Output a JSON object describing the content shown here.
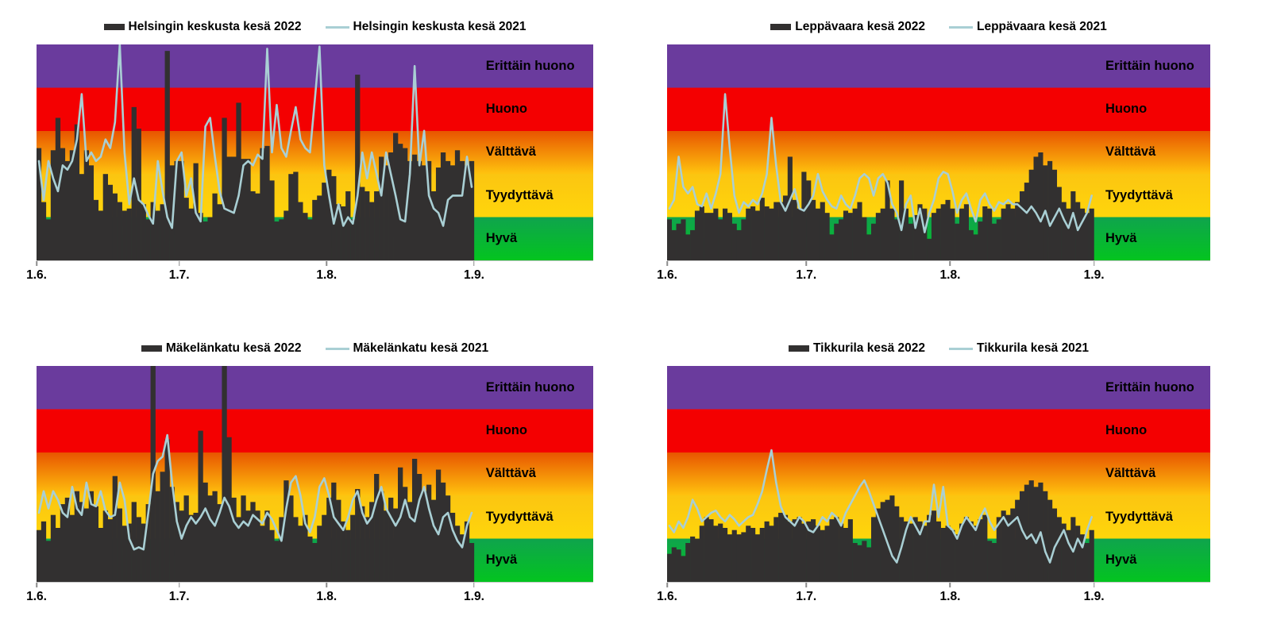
{
  "page": {
    "background": "#ffffff"
  },
  "colors": {
    "bar": "#323030",
    "line": "#A9CFD4",
    "axis_line": "#c9c9c9",
    "tick": "#8c8c8c",
    "text": "#000000"
  },
  "quality_bands": [
    {
      "label": "Erittäin huono",
      "range": [
        4,
        5
      ],
      "color_top": "#6A3B9D",
      "color_bottom": "#6A3B9D"
    },
    {
      "label": "Huono",
      "range": [
        3,
        4
      ],
      "color_top": "#F40001",
      "color_bottom": "#F40001"
    },
    {
      "label": "Välttävä",
      "range": [
        2,
        3
      ],
      "color_top": "#E85500",
      "color_bottom": "#FFC30E"
    },
    {
      "label": "Tyydyttävä",
      "range": [
        1,
        2
      ],
      "color_top": "#FBC511",
      "color_bottom": "#FFD60B"
    },
    {
      "label": "Hyvä",
      "range": [
        0,
        1
      ],
      "color_top": "#0FA44D",
      "color_bottom": "#03C41F"
    }
  ],
  "x_axis": {
    "tick_labels": [
      "1.6.",
      "1.7.",
      "1.8.",
      "1.9."
    ],
    "tick_days": [
      0,
      30,
      61,
      92
    ],
    "n_days": 92
  },
  "chart_data": [
    {
      "type": "bar+line",
      "title": "",
      "ylim": [
        0,
        5
      ],
      "x_tick_labels": [
        "1.6.",
        "1.7.",
        "1.8.",
        "1.9."
      ],
      "series": [
        {
          "name": "Helsingin keskusta kesä 2022",
          "type": "bar",
          "color": "#323030",
          "values": [
            2.6,
            1.35,
            0.95,
            2.55,
            3.3,
            2.6,
            2.3,
            2.55,
            3.15,
            2.0,
            2.55,
            2.2,
            1.4,
            1.15,
            2.0,
            1.75,
            1.55,
            1.35,
            1.15,
            1.2,
            3.55,
            3.05,
            1.3,
            0.95,
            1.35,
            1.15,
            1.3,
            4.85,
            2.2,
            2.3,
            2.3,
            1.45,
            1.2,
            2.25,
            1.1,
            0.9,
            1.0,
            1.55,
            1.3,
            3.3,
            2.4,
            2.4,
            3.65,
            2.35,
            2.35,
            1.6,
            1.55,
            2.6,
            2.65,
            1.85,
            0.9,
            0.95,
            1.15,
            2.0,
            2.05,
            1.35,
            1.1,
            0.95,
            1.4,
            1.5,
            1.8,
            2.1,
            1.95,
            1.3,
            1.25,
            1.6,
            0.95,
            4.3,
            1.7,
            1.6,
            1.35,
            1.6,
            2.4,
            2.2,
            2.5,
            2.95,
            2.7,
            2.6,
            2.3,
            2.45,
            2.3,
            2.2,
            2.3,
            1.6,
            2.15,
            2.5,
            2.3,
            2.2,
            2.55,
            2.3,
            2.2,
            2.3
          ]
        },
        {
          "name": "Helsingin keskusta kesä 2021",
          "type": "line",
          "color": "#A9CFD4",
          "values": [
            2.3,
            1.4,
            2.3,
            1.9,
            1.6,
            2.2,
            2.1,
            2.3,
            2.8,
            3.85,
            2.3,
            2.5,
            2.3,
            2.4,
            2.8,
            2.6,
            3.2,
            5.0,
            2.5,
            1.3,
            1.9,
            1.4,
            1.3,
            1.05,
            0.85,
            2.3,
            1.6,
            1.0,
            0.75,
            2.3,
            2.5,
            1.5,
            1.9,
            1.1,
            0.9,
            3.1,
            3.3,
            2.4,
            1.6,
            1.2,
            1.15,
            1.1,
            1.5,
            2.2,
            2.3,
            2.2,
            2.45,
            2.35,
            4.9,
            2.5,
            3.6,
            2.6,
            2.4,
            3.0,
            3.55,
            2.8,
            2.6,
            2.5,
            3.7,
            4.95,
            2.2,
            1.5,
            0.85,
            1.3,
            0.8,
            1.0,
            0.85,
            1.5,
            2.5,
            1.9,
            2.5,
            2.0,
            1.5,
            2.5,
            2.0,
            1.5,
            0.95,
            0.9,
            2.0,
            4.5,
            2.2,
            3.0,
            1.5,
            1.2,
            1.1,
            0.8,
            1.4,
            1.5,
            1.5,
            1.5,
            2.4,
            1.7
          ]
        }
      ]
    },
    {
      "type": "bar+line",
      "title": "",
      "ylim": [
        0,
        5
      ],
      "x_tick_labels": [
        "1.6.",
        "1.7.",
        "1.8.",
        "1.9."
      ],
      "series": [
        {
          "name": "Leppävaara kesä 2022",
          "type": "bar",
          "color": "#323030",
          "values": [
            0.95,
            0.7,
            0.85,
            0.95,
            0.6,
            0.7,
            1.15,
            1.25,
            1.1,
            1.1,
            1.2,
            0.95,
            1.2,
            1.1,
            0.85,
            0.7,
            0.95,
            1.2,
            1.25,
            1.15,
            1.45,
            1.25,
            1.2,
            1.35,
            1.35,
            1.5,
            2.4,
            1.4,
            1.2,
            2.05,
            1.85,
            1.4,
            1.2,
            1.35,
            1.1,
            0.6,
            0.85,
            0.95,
            1.15,
            1.1,
            1.2,
            1.35,
            1.0,
            0.6,
            0.85,
            1.1,
            1.2,
            1.85,
            1.2,
            0.95,
            1.85,
            1.2,
            0.85,
            1.05,
            1.3,
            1.2,
            0.5,
            1.1,
            1.2,
            1.3,
            1.4,
            1.2,
            0.85,
            1.2,
            1.3,
            0.7,
            0.6,
            0.9,
            1.25,
            1.2,
            0.85,
            0.95,
            1.2,
            1.3,
            1.2,
            1.35,
            1.6,
            1.8,
            2.1,
            2.4,
            2.5,
            2.2,
            2.3,
            2.1,
            1.7,
            1.35,
            1.2,
            1.6,
            1.35,
            1.2,
            1.1,
            1.2
          ]
        },
        {
          "name": "Leppävaara kesä 2021",
          "type": "line",
          "color": "#A9CFD4",
          "values": [
            1.2,
            1.4,
            2.4,
            1.7,
            1.55,
            1.7,
            1.3,
            1.25,
            1.55,
            1.2,
            1.55,
            2.0,
            3.85,
            2.6,
            1.5,
            1.1,
            1.35,
            1.25,
            1.4,
            1.3,
            1.55,
            2.0,
            3.3,
            2.2,
            1.35,
            1.15,
            1.4,
            1.65,
            1.2,
            1.15,
            1.3,
            1.5,
            2.0,
            1.6,
            1.4,
            1.25,
            1.2,
            1.5,
            1.3,
            1.2,
            1.5,
            1.9,
            2.0,
            1.9,
            1.5,
            1.9,
            2.0,
            1.8,
            1.3,
            1.1,
            0.7,
            1.3,
            1.5,
            0.75,
            1.2,
            0.65,
            1.1,
            1.4,
            1.9,
            2.05,
            2.0,
            1.6,
            1.1,
            1.4,
            1.55,
            1.2,
            0.9,
            1.4,
            1.55,
            1.3,
            1.15,
            1.35,
            1.3,
            1.4,
            1.3,
            1.3,
            1.2,
            1.1,
            1.25,
            1.1,
            0.9,
            1.15,
            0.8,
            1.0,
            1.2,
            0.95,
            0.75,
            1.1,
            0.7,
            0.9,
            1.1,
            1.5
          ]
        }
      ]
    },
    {
      "type": "bar+line",
      "title": "",
      "ylim": [
        0,
        5
      ],
      "x_tick_labels": [
        "1.6.",
        "1.7.",
        "1.8.",
        "1.9."
      ],
      "series": [
        {
          "name": "Mäkelänkatu kesä 2022",
          "type": "bar",
          "color": "#323030",
          "values": [
            1.2,
            1.4,
            0.95,
            1.55,
            1.25,
            1.8,
            1.95,
            1.55,
            2.1,
            1.85,
            1.7,
            2.1,
            1.75,
            1.25,
            1.65,
            1.45,
            2.45,
            1.7,
            1.3,
            1.35,
            1.85,
            1.5,
            1.35,
            1.8,
            5.0,
            2.1,
            2.55,
            3.3,
            2.2,
            1.85,
            1.65,
            2.0,
            1.55,
            1.6,
            3.5,
            2.3,
            2.0,
            2.1,
            1.8,
            5.0,
            3.35,
            1.95,
            1.5,
            2.0,
            1.65,
            1.85,
            1.65,
            1.3,
            1.65,
            1.2,
            0.95,
            1.5,
            2.35,
            2.0,
            1.5,
            1.3,
            1.55,
            1.05,
            0.9,
            1.3,
            1.55,
            1.95,
            2.3,
            1.9,
            1.4,
            1.2,
            1.55,
            2.15,
            1.75,
            1.5,
            1.85,
            2.5,
            2.1,
            1.65,
            1.95,
            1.7,
            2.65,
            2.2,
            1.85,
            2.85,
            2.5,
            2.1,
            2.25,
            1.9,
            2.6,
            2.3,
            2.0,
            1.6,
            1.3,
            1.1,
            1.4,
            0.9
          ]
        },
        {
          "name": "Mäkelänkatu kesä 2021",
          "type": "line",
          "color": "#A9CFD4",
          "values": [
            1.6,
            2.1,
            1.7,
            2.1,
            1.9,
            1.6,
            1.5,
            2.2,
            1.7,
            1.55,
            2.3,
            1.8,
            1.75,
            2.1,
            1.65,
            1.5,
            1.55,
            2.3,
            1.9,
            1.0,
            0.75,
            0.8,
            0.75,
            1.6,
            2.5,
            2.8,
            2.9,
            3.4,
            2.3,
            1.4,
            1.0,
            1.3,
            1.5,
            1.35,
            1.5,
            1.7,
            1.45,
            1.3,
            1.6,
            1.95,
            1.75,
            1.4,
            1.25,
            1.4,
            1.3,
            1.55,
            1.45,
            1.35,
            1.6,
            1.45,
            1.2,
            0.95,
            1.7,
            2.3,
            2.45,
            2.0,
            1.35,
            1.15,
            1.5,
            2.2,
            2.4,
            2.0,
            1.5,
            1.35,
            1.2,
            1.5,
            1.9,
            2.1,
            1.6,
            1.35,
            1.5,
            1.9,
            2.2,
            1.7,
            1.5,
            1.3,
            1.5,
            1.9,
            1.5,
            1.4,
            1.9,
            2.2,
            1.7,
            1.3,
            1.1,
            1.5,
            1.6,
            1.2,
            0.95,
            0.8,
            1.3,
            1.6
          ]
        }
      ]
    },
    {
      "type": "bar+line",
      "title": "",
      "ylim": [
        0,
        5
      ],
      "x_tick_labels": [
        "1.6.",
        "1.7.",
        "1.8.",
        "1.9."
      ],
      "series": [
        {
          "name": "Tikkurila kesä 2022",
          "type": "bar",
          "color": "#323030",
          "values": [
            0.65,
            0.8,
            0.75,
            0.6,
            0.9,
            1.05,
            1.0,
            1.3,
            1.5,
            1.45,
            1.3,
            1.35,
            1.25,
            1.1,
            1.2,
            1.1,
            1.15,
            1.3,
            1.25,
            1.1,
            1.25,
            1.4,
            1.3,
            1.5,
            1.6,
            1.55,
            1.4,
            1.45,
            1.5,
            1.35,
            1.4,
            1.45,
            1.3,
            1.2,
            1.3,
            1.45,
            1.5,
            1.35,
            1.25,
            1.45,
            0.9,
            0.85,
            0.95,
            0.8,
            1.5,
            1.7,
            1.85,
            1.9,
            2.0,
            1.75,
            1.5,
            1.4,
            1.35,
            1.5,
            1.4,
            1.3,
            1.55,
            1.65,
            1.4,
            1.25,
            1.3,
            1.2,
            1.1,
            1.35,
            1.5,
            1.4,
            1.3,
            1.45,
            1.55,
            0.95,
            0.9,
            1.5,
            1.65,
            1.55,
            1.7,
            1.9,
            2.1,
            2.25,
            2.35,
            2.2,
            2.3,
            2.1,
            1.9,
            1.7,
            1.5,
            1.35,
            1.2,
            1.5,
            1.3,
            1.1,
            0.9,
            1.2
          ]
        },
        {
          "name": "Tikkurila kesä 2021",
          "type": "line",
          "color": "#A9CFD4",
          "values": [
            1.3,
            1.15,
            1.4,
            1.25,
            1.5,
            1.9,
            1.7,
            1.4,
            1.5,
            1.6,
            1.65,
            1.5,
            1.4,
            1.55,
            1.45,
            1.3,
            1.4,
            1.5,
            1.55,
            1.8,
            2.1,
            2.6,
            3.05,
            2.3,
            1.75,
            1.5,
            1.4,
            1.3,
            1.5,
            1.4,
            1.2,
            1.15,
            1.3,
            1.5,
            1.4,
            1.6,
            1.5,
            1.3,
            1.6,
            1.8,
            2.0,
            2.2,
            2.35,
            2.1,
            1.8,
            1.5,
            1.2,
            0.9,
            0.6,
            0.45,
            0.8,
            1.2,
            1.5,
            1.3,
            1.1,
            1.4,
            1.4,
            2.25,
            1.5,
            2.2,
            1.3,
            1.2,
            1.0,
            1.3,
            1.5,
            1.35,
            1.2,
            1.5,
            1.7,
            1.4,
            1.2,
            1.35,
            1.5,
            1.3,
            1.4,
            1.5,
            1.2,
            1.0,
            1.1,
            0.9,
            1.15,
            0.7,
            0.45,
            0.8,
            1.0,
            1.2,
            0.9,
            0.7,
            1.0,
            0.8,
            1.2,
            1.5
          ]
        }
      ]
    }
  ]
}
